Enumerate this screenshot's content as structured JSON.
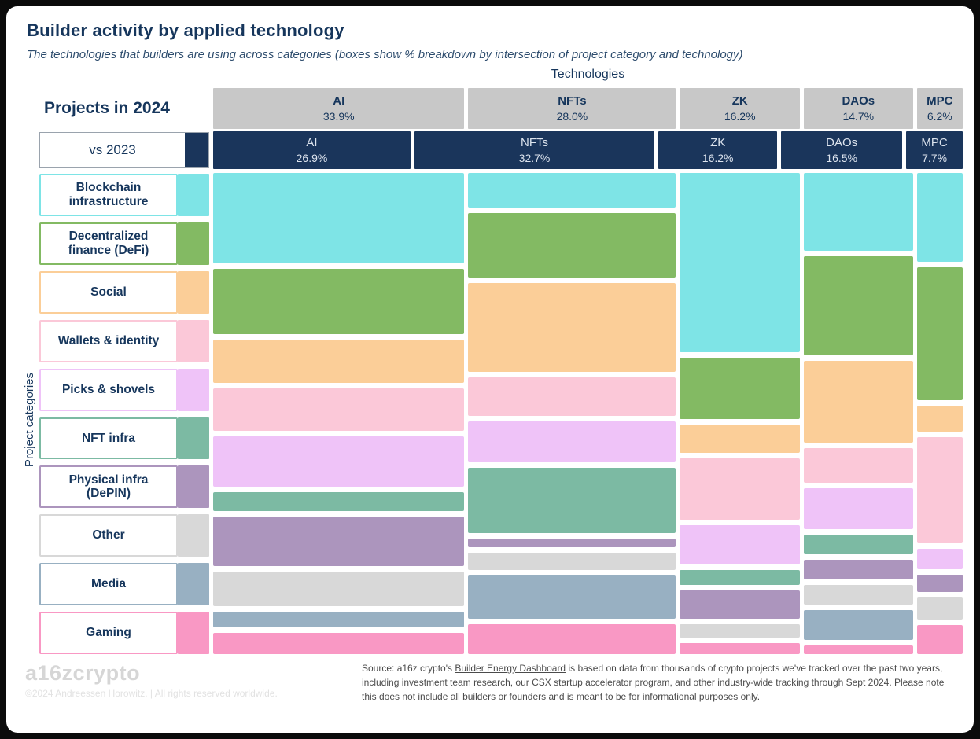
{
  "title": "Builder activity by applied technology",
  "subtitle": "The technologies that builders are using across categories (boxes show % breakdown by intersection of project category and technology)",
  "axes": {
    "top": "Technologies",
    "left": "Project categories"
  },
  "legend": {
    "projects_2024": "Projects in 2024",
    "vs_2023": "vs 2023"
  },
  "colors": {
    "navy": "#1A355B",
    "navy_text": "#16365C",
    "header_gray": "#C8C8C8",
    "frame": "#000000",
    "card": "#FFFFFF"
  },
  "chart_data": {
    "type": "bar",
    "variant": "marimekko-mosaic",
    "note": "Column widths are % share of technology; cell heights are estimated % of each column (cells carry no printed labels in the chart).",
    "legend_position": "left",
    "categories": [
      {
        "id": "blockchain-infrastructure",
        "label": "Blockchain infrastructure",
        "color": "#7EE4E6"
      },
      {
        "id": "defi",
        "label": "Decentralized finance (DeFi)",
        "color": "#83BA63"
      },
      {
        "id": "social",
        "label": "Social",
        "color": "#FBCE98"
      },
      {
        "id": "wallets-identity",
        "label": "Wallets & identity",
        "color": "#FBC8D8"
      },
      {
        "id": "picks-shovels",
        "label": "Picks & shovels",
        "color": "#EFC3F8"
      },
      {
        "id": "nft-infra",
        "label": "NFT infra",
        "color": "#7CBAA3"
      },
      {
        "id": "physical-infra-depin",
        "label": "Physical infra (DePIN)",
        "color": "#AC95BD"
      },
      {
        "id": "other",
        "label": "Other",
        "color": "#D8D8D8"
      },
      {
        "id": "media",
        "label": "Media",
        "color": "#98B0C2"
      },
      {
        "id": "gaming",
        "label": "Gaming",
        "color": "#F998C4"
      }
    ],
    "columns": [
      {
        "id": "ai",
        "label": "AI",
        "share_2024": 33.9,
        "share_2023": 26.9,
        "cells": [
          21,
          15,
          10,
          10,
          11.5,
          4.5,
          11.5,
          8,
          3.5,
          5
        ]
      },
      {
        "id": "nfts",
        "label": "NFTs",
        "share_2024": 28.0,
        "share_2023": 32.7,
        "cells": [
          8,
          15,
          20.5,
          9,
          9.5,
          15,
          2,
          4,
          10,
          7
        ]
      },
      {
        "id": "zk",
        "label": "ZK",
        "share_2024": 16.2,
        "share_2023": 16.2,
        "cells": [
          41,
          14,
          6.5,
          14,
          9,
          3.5,
          6.5,
          3,
          0,
          2.5
        ]
      },
      {
        "id": "daos",
        "label": "DAOs",
        "share_2024": 14.7,
        "share_2023": 16.5,
        "cells": [
          18,
          23,
          19,
          8,
          9.5,
          4.5,
          4.5,
          4.5,
          7,
          2
        ]
      },
      {
        "id": "mpc",
        "label": "MPC",
        "share_2024": 6.2,
        "share_2023": 7.7,
        "cells": [
          20,
          30,
          6,
          24,
          4.5,
          0,
          4,
          5,
          0,
          6.5
        ]
      }
    ]
  },
  "footer": {
    "logo": "a16zcrypto",
    "copyright": "©2024 Andreessen Horowitz. | All rights reserved worldwide.",
    "source_prefix": "Source: a16z crypto's ",
    "source_link": "Builder Energy Dashboard",
    "source_suffix": " is based on data from thousands of crypto projects we've tracked over the past two years, including investment team research, our CSX startup accelerator program, and other industry-wide tracking through Sept 2024. Please note this does not include all builders or founders and is meant to be for informational purposes only."
  }
}
